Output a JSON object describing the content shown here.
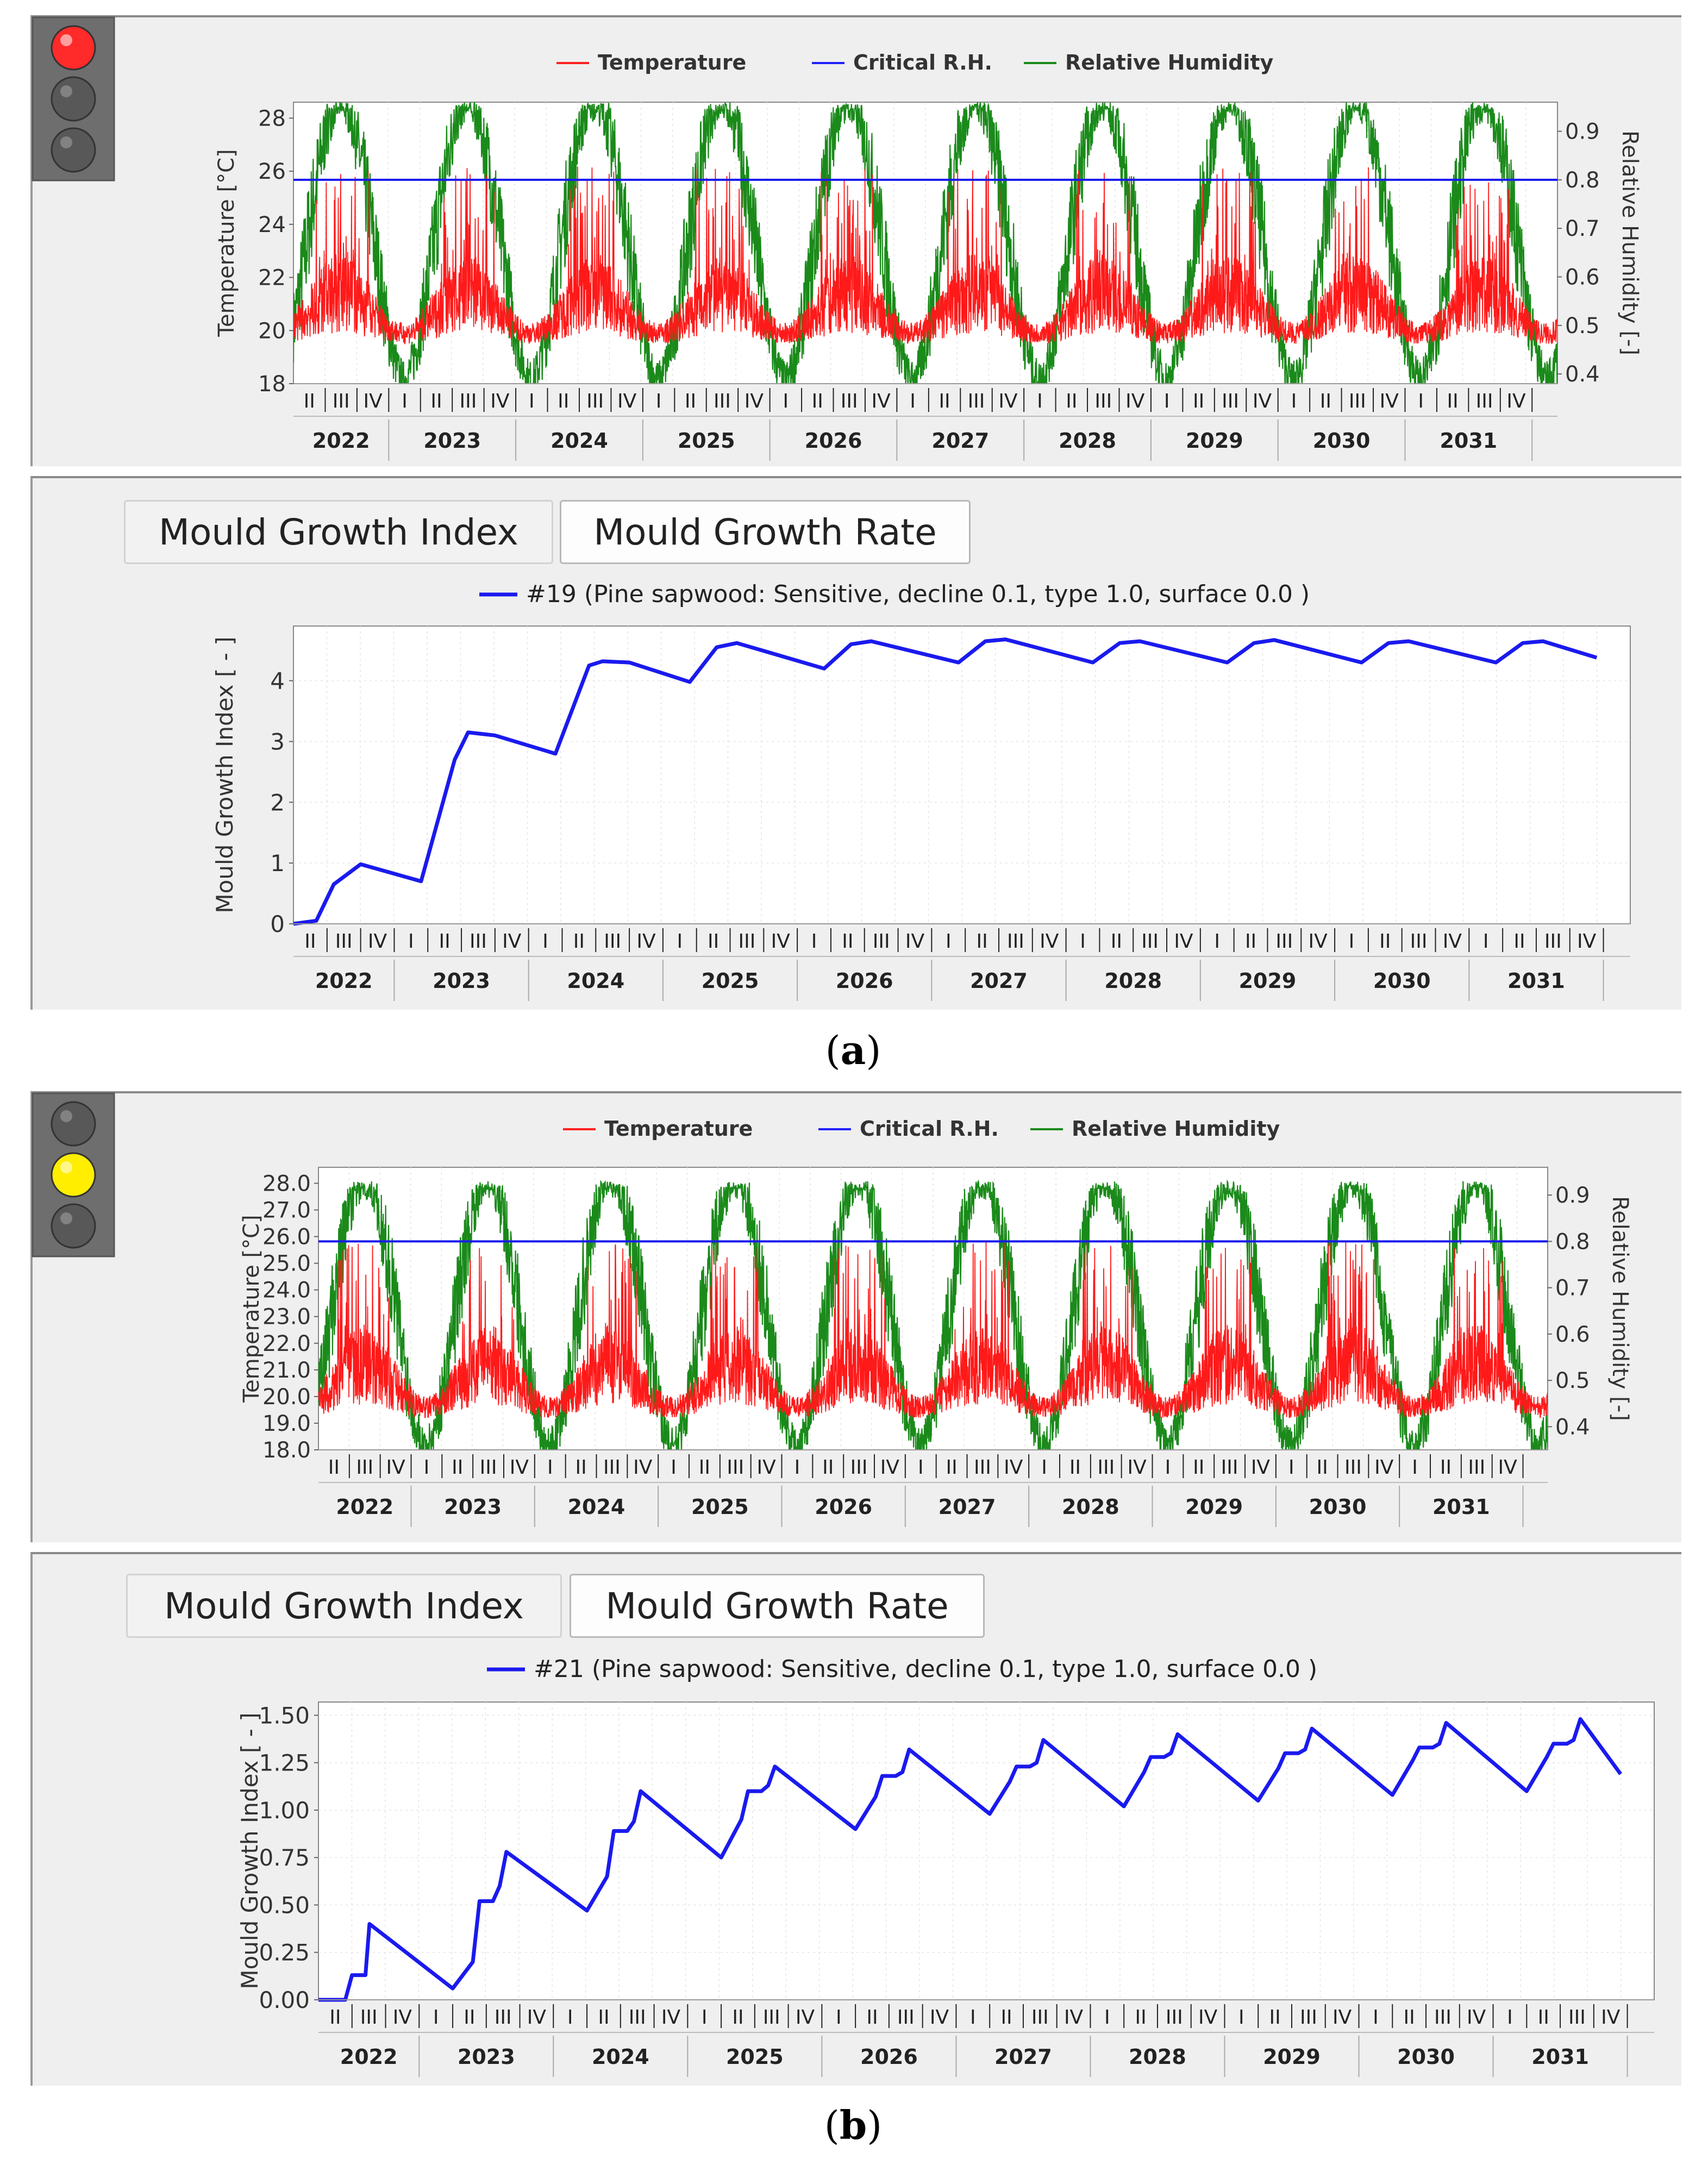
{
  "figure": {
    "panels": [
      {
        "caption": "a",
        "indicator": {
          "active": "red"
        },
        "climate_chart": {
          "legend": [
            "Temperature",
            "Critical R.H.",
            "Relative Humidity"
          ],
          "y_left": {
            "label": "Temperature [°C]",
            "ticks": [
              "18",
              "20",
              "22",
              "24",
              "26",
              "28"
            ],
            "range": [
              18,
              28.6
            ]
          },
          "y_right": {
            "label": "Relative Humidity [-]",
            "ticks": [
              "0.4",
              "0.5",
              "0.6",
              "0.7",
              "0.8",
              "0.9"
            ],
            "range": [
              0.38,
              0.96
            ]
          },
          "critical_rh": 0.8,
          "quarters": [
            "II",
            "III",
            "IV",
            "I"
          ],
          "years": [
            "2022",
            "2023",
            "2024",
            "2025",
            "2026",
            "2027",
            "2028",
            "2029",
            "2030",
            "2031"
          ],
          "temp_base": 20.5,
          "temp_amp": 1.5,
          "temp_peak": 26.2,
          "rh_low": 0.39,
          "rh_high": 0.96
        },
        "tabs": [
          "Mould Growth Index",
          "Mould Growth Rate"
        ],
        "mould_chart": {
          "legend": "#19 (Pine sapwood: Sensitive, decline 0.1, type 1.0, surface 0.0 )",
          "y_label": "Mould Growth Index [ - ]",
          "y_ticks": [
            "0",
            "1",
            "2",
            "3",
            "4"
          ],
          "range": [
            0,
            4.9
          ],
          "quarters": [
            "II",
            "III",
            "IV",
            "I"
          ],
          "years": [
            "2022",
            "2023",
            "2024",
            "2025",
            "2026",
            "2027",
            "2028",
            "2029",
            "2030",
            "2031"
          ]
        }
      },
      {
        "caption": "b",
        "indicator": {
          "active": "yellow"
        },
        "climate_chart": {
          "legend": [
            "Temperature",
            "Critical R.H.",
            "Relative Humidity"
          ],
          "y_left": {
            "label": "Temperature [°C]",
            "ticks": [
              "18.0",
              "19.0",
              "20.0",
              "21.0",
              "22.0",
              "23.0",
              "24.0",
              "25.0",
              "26.0",
              "27.0",
              "28.0"
            ],
            "range": [
              18,
              28.6
            ]
          },
          "y_right": {
            "label": "Relative Humidity [-]",
            "ticks": [
              "0.4",
              "0.5",
              "0.6",
              "0.7",
              "0.8",
              "0.9"
            ],
            "range": [
              0.35,
              0.96
            ]
          },
          "critical_rh": 0.8,
          "quarters": [
            "II",
            "III",
            "IV",
            "I"
          ],
          "years": [
            "2022",
            "2023",
            "2024",
            "2025",
            "2026",
            "2027",
            "2028",
            "2029",
            "2030",
            "2031"
          ],
          "temp_base": 20.2,
          "temp_amp": 1.6,
          "temp_peak": 25.8,
          "rh_low": 0.36,
          "rh_high": 0.93
        },
        "tabs": [
          "Mould Growth Index",
          "Mould Growth Rate"
        ],
        "mould_chart": {
          "legend": "#21 (Pine sapwood: Sensitive, decline 0.1, type 1.0, surface 0.0 )",
          "y_label": "Mould Growth Index [ - ]",
          "y_ticks": [
            "0.00",
            "0.25",
            "0.50",
            "0.75",
            "1.00",
            "1.25",
            "1.50"
          ],
          "range": [
            0,
            1.57
          ],
          "quarters": [
            "II",
            "III",
            "IV",
            "I"
          ],
          "years": [
            "2022",
            "2023",
            "2024",
            "2025",
            "2026",
            "2027",
            "2028",
            "2029",
            "2030",
            "2031"
          ]
        }
      }
    ]
  },
  "chart_data": [
    {
      "type": "line",
      "title": "",
      "series": [
        {
          "name": "Critical R.H.",
          "y": 0.8,
          "axis": "right"
        }
      ],
      "x": [
        "2022",
        "2023",
        "2024",
        "2025",
        "2026",
        "2027",
        "2028",
        "2029",
        "2030",
        "2031"
      ],
      "ylim_left": [
        18,
        28
      ],
      "ylim_right": [
        0.4,
        0.9
      ]
    },
    {
      "type": "line",
      "series": [
        {
          "name": "#19 (Pine sapwood: Sensitive, decline 0.1, type 1.0, surface 0.0 )",
          "x": [
            2022.25,
            2022.42,
            2022.55,
            2022.75,
            2023.2,
            2023.45,
            2023.55,
            2023.75,
            2024.2,
            2024.45,
            2024.55,
            2024.75,
            2025.2,
            2025.4,
            2025.55,
            2026.2,
            2026.4,
            2026.55,
            2027.2,
            2027.4,
            2027.55,
            2028.2,
            2028.4,
            2028.55,
            2029.2,
            2029.4,
            2029.55,
            2030.2,
            2030.4,
            2030.55,
            2031.2,
            2031.4,
            2031.55,
            2031.95
          ],
          "y": [
            0,
            0.05,
            0.65,
            0.98,
            0.7,
            2.7,
            3.15,
            3.1,
            2.8,
            4.25,
            4.32,
            4.3,
            3.98,
            4.55,
            4.62,
            4.2,
            4.6,
            4.65,
            4.3,
            4.65,
            4.68,
            4.3,
            4.62,
            4.65,
            4.3,
            4.62,
            4.67,
            4.3,
            4.62,
            4.65,
            4.3,
            4.62,
            4.65,
            4.38
          ]
        }
      ],
      "ylabel": "Mould Growth Index [ - ]",
      "ylim": [
        0,
        4.9
      ]
    },
    {
      "type": "line",
      "series": [
        {
          "name": "Critical R.H.",
          "y": 0.8,
          "axis": "right"
        }
      ],
      "x": [
        "2022",
        "2023",
        "2024",
        "2025",
        "2026",
        "2027",
        "2028",
        "2029",
        "2030",
        "2031"
      ],
      "ylim_left": [
        18,
        28
      ],
      "ylim_right": [
        0.4,
        0.9
      ]
    },
    {
      "type": "line",
      "series": [
        {
          "name": "#21 (Pine sapwood: Sensitive, decline 0.1, type 1.0, surface 0.0 )",
          "x": [
            2022.25,
            2022.45,
            2022.5,
            2022.55,
            2022.6,
            2022.63,
            2023.25,
            2023.4,
            2023.45,
            2023.55,
            2023.6,
            2023.65,
            2024.25,
            2024.4,
            2024.45,
            2024.55,
            2024.6,
            2024.65,
            2025.25,
            2025.4,
            2025.45,
            2025.55,
            2025.6,
            2025.65,
            2026.25,
            2026.4,
            2026.45,
            2026.55,
            2026.6,
            2026.65,
            2027.25,
            2027.4,
            2027.45,
            2027.55,
            2027.6,
            2027.65,
            2028.25,
            2028.4,
            2028.45,
            2028.55,
            2028.6,
            2028.65,
            2029.25,
            2029.4,
            2029.45,
            2029.55,
            2029.6,
            2029.65,
            2030.25,
            2030.4,
            2030.45,
            2030.55,
            2030.6,
            2030.65,
            2031.25,
            2031.4,
            2031.45,
            2031.55,
            2031.6,
            2031.65,
            2031.95
          ],
          "y": [
            0,
            0,
            0.13,
            0.13,
            0.13,
            0.4,
            0.06,
            0.2,
            0.52,
            0.52,
            0.6,
            0.78,
            0.47,
            0.65,
            0.89,
            0.89,
            0.94,
            1.1,
            0.75,
            0.95,
            1.1,
            1.1,
            1.13,
            1.23,
            0.9,
            1.07,
            1.18,
            1.18,
            1.2,
            1.32,
            0.98,
            1.15,
            1.23,
            1.23,
            1.25,
            1.37,
            1.02,
            1.2,
            1.28,
            1.28,
            1.3,
            1.4,
            1.05,
            1.22,
            1.3,
            1.3,
            1.32,
            1.43,
            1.08,
            1.26,
            1.33,
            1.33,
            1.35,
            1.46,
            1.1,
            1.28,
            1.35,
            1.35,
            1.37,
            1.48,
            1.19
          ]
        }
      ],
      "ylabel": "Mould Growth Index [ - ]",
      "ylim": [
        0,
        1.57
      ]
    }
  ]
}
